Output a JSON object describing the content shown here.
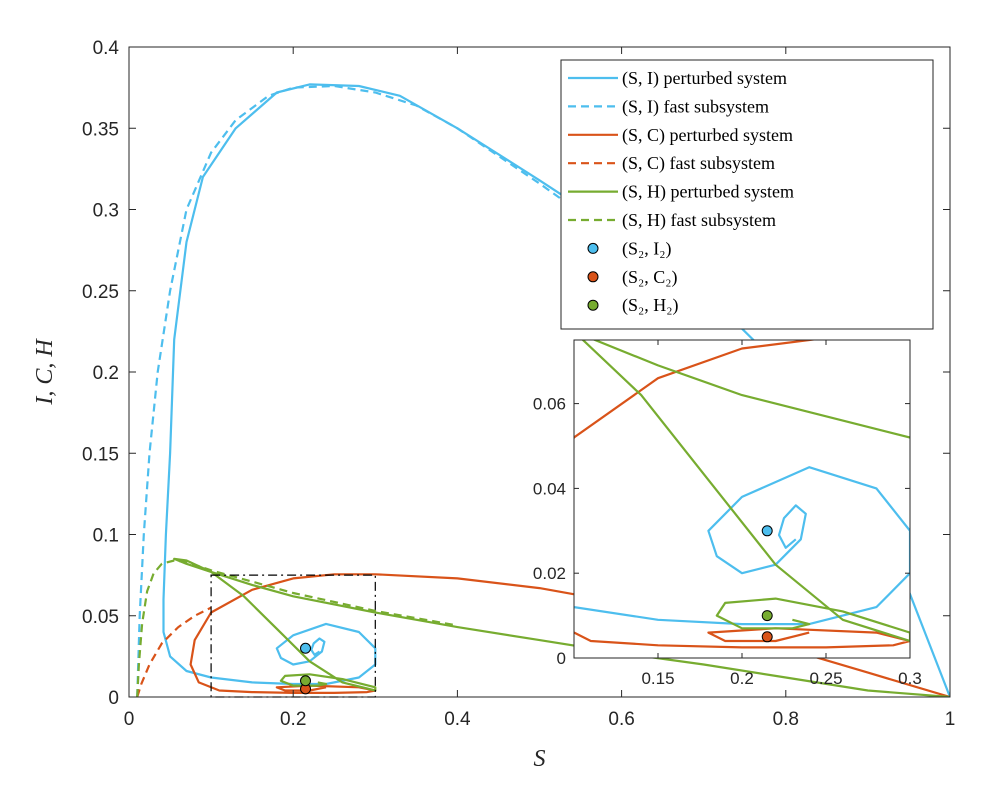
{
  "chart_data": {
    "type": "line",
    "xlabel": "S",
    "ylabel": "I, C, H",
    "xlim": [
      0,
      1
    ],
    "ylim": [
      0,
      0.4
    ],
    "xticks": [
      0,
      0.2,
      0.4,
      0.6,
      0.8,
      1
    ],
    "yticks": [
      0,
      0.05,
      0.1,
      0.15,
      0.2,
      0.25,
      0.3,
      0.35,
      0.4
    ],
    "xtick_labels": [
      "0",
      "0.2",
      "0.4",
      "0.6",
      "0.8",
      "1"
    ],
    "ytick_labels": [
      "0",
      "0.05",
      "0.1",
      "0.15",
      "0.2",
      "0.25",
      "0.3",
      "0.35",
      "0.4"
    ],
    "grid": false,
    "legend_position": "top-right",
    "colors": {
      "I": "#4DBEEE",
      "C": "#D95319",
      "H": "#77AC30"
    },
    "series": [
      {
        "name": "(S, I) perturbed system",
        "legend_text": "(S, I) perturbed system",
        "color": "#4DBEEE",
        "style": "solid",
        "x": [
          1.0,
          0.9,
          0.8,
          0.7,
          0.6,
          0.5,
          0.4,
          0.33,
          0.28,
          0.22,
          0.18,
          0.13,
          0.09,
          0.07,
          0.055,
          0.05,
          0.045,
          0.042,
          0.042,
          0.05,
          0.07,
          0.1,
          0.15,
          0.2,
          0.24,
          0.28,
          0.3,
          0.3,
          0.28,
          0.24,
          0.2,
          0.18,
          0.185,
          0.2,
          0.22,
          0.235,
          0.238,
          0.232,
          0.225,
          0.222,
          0.226,
          0.232
        ],
        "y": [
          0.0,
          0.13,
          0.2,
          0.25,
          0.285,
          0.318,
          0.35,
          0.37,
          0.376,
          0.377,
          0.372,
          0.35,
          0.32,
          0.28,
          0.22,
          0.15,
          0.1,
          0.06,
          0.04,
          0.025,
          0.016,
          0.012,
          0.009,
          0.008,
          0.008,
          0.012,
          0.02,
          0.03,
          0.04,
          0.045,
          0.038,
          0.03,
          0.024,
          0.02,
          0.022,
          0.028,
          0.034,
          0.036,
          0.033,
          0.029,
          0.026,
          0.028
        ]
      },
      {
        "name": "(S, I) fast subsystem",
        "legend_text": "(S, I) fast subsystem",
        "color": "#4DBEEE",
        "style": "dashed",
        "x": [
          0.01,
          0.013,
          0.018,
          0.025,
          0.035,
          0.05,
          0.07,
          0.1,
          0.13,
          0.17,
          0.2,
          0.25,
          0.3,
          0.35,
          0.4,
          0.5,
          0.6
        ],
        "y": [
          0.0,
          0.05,
          0.1,
          0.15,
          0.2,
          0.25,
          0.3,
          0.335,
          0.355,
          0.37,
          0.375,
          0.376,
          0.372,
          0.364,
          0.35,
          0.316,
          0.28
        ]
      },
      {
        "name": "(S, C) perturbed system",
        "legend_text": "(S, C) perturbed system",
        "color": "#D95319",
        "style": "solid",
        "x": [
          1.0,
          0.9,
          0.8,
          0.7,
          0.6,
          0.5,
          0.4,
          0.3,
          0.25,
          0.2,
          0.15,
          0.1,
          0.08,
          0.075,
          0.085,
          0.11,
          0.15,
          0.2,
          0.25,
          0.29,
          0.3,
          0.28,
          0.22,
          0.18,
          0.19,
          0.22,
          0.24
        ],
        "y": [
          0.0,
          0.015,
          0.03,
          0.045,
          0.058,
          0.067,
          0.073,
          0.0755,
          0.0755,
          0.073,
          0.066,
          0.052,
          0.035,
          0.02,
          0.009,
          0.004,
          0.003,
          0.0025,
          0.0025,
          0.003,
          0.004,
          0.006,
          0.007,
          0.006,
          0.004,
          0.004,
          0.006
        ]
      },
      {
        "name": "(S, C) fast subsystem",
        "legend_text": "(S, C) fast subsystem",
        "color": "#D95319",
        "style": "dashed",
        "x": [
          0.01,
          0.015,
          0.025,
          0.04,
          0.06,
          0.08,
          0.1
        ],
        "y": [
          0.0,
          0.008,
          0.02,
          0.033,
          0.043,
          0.05,
          0.055
        ]
      },
      {
        "name": "(S, H) perturbed system",
        "legend_text": "(S, H) perturbed system",
        "color": "#77AC30",
        "style": "solid",
        "x": [
          1.0,
          0.9,
          0.8,
          0.7,
          0.6,
          0.5,
          0.4,
          0.3,
          0.2,
          0.15,
          0.1,
          0.07,
          0.055,
          0.07,
          0.1,
          0.14,
          0.18,
          0.22,
          0.26,
          0.3,
          0.3,
          0.26,
          0.22,
          0.19,
          0.185,
          0.2,
          0.23,
          0.24,
          0.23
        ],
        "y": [
          0.0,
          0.004,
          0.012,
          0.02,
          0.027,
          0.035,
          0.043,
          0.052,
          0.062,
          0.069,
          0.077,
          0.082,
          0.085,
          0.084,
          0.077,
          0.062,
          0.042,
          0.022,
          0.009,
          0.004,
          0.006,
          0.011,
          0.014,
          0.013,
          0.01,
          0.007,
          0.007,
          0.008,
          0.009
        ]
      },
      {
        "name": "(S, H) fast subsystem",
        "legend_text": "(S, H) fast subsystem",
        "color": "#77AC30",
        "style": "dashed",
        "x": [
          0.01,
          0.012,
          0.016,
          0.022,
          0.03,
          0.04,
          0.055,
          0.07,
          0.1,
          0.15,
          0.2,
          0.3,
          0.4
        ],
        "y": [
          0.0,
          0.02,
          0.045,
          0.065,
          0.076,
          0.082,
          0.084,
          0.083,
          0.078,
          0.071,
          0.064,
          0.053,
          0.044
        ]
      }
    ],
    "equilibria": [
      {
        "name": "(S2, I2)",
        "legend_text": "(S₂, I₂)",
        "color": "#4DBEEE",
        "x": 0.215,
        "y": 0.03
      },
      {
        "name": "(S2, C2)",
        "legend_text": "(S₂, C₂)",
        "color": "#D95319",
        "x": 0.215,
        "y": 0.005
      },
      {
        "name": "(S2, H2)",
        "legend_text": "(S₂, H₂)",
        "color": "#77AC30",
        "x": 0.215,
        "y": 0.01
      }
    ],
    "zoom_box": {
      "xlim": [
        0.1,
        0.3
      ],
      "ylim": [
        0,
        0.075
      ]
    },
    "inset": {
      "xlim": [
        0.1,
        0.3
      ],
      "ylim": [
        0,
        0.075
      ],
      "xticks": [
        0.15,
        0.2,
        0.25,
        0.3
      ],
      "yticks": [
        0,
        0.02,
        0.04,
        0.06
      ],
      "xtick_labels": [
        "0.15",
        "0.2",
        "0.25",
        "0.3"
      ],
      "ytick_labels": [
        "0",
        "0.02",
        "0.04",
        "0.06"
      ]
    }
  }
}
